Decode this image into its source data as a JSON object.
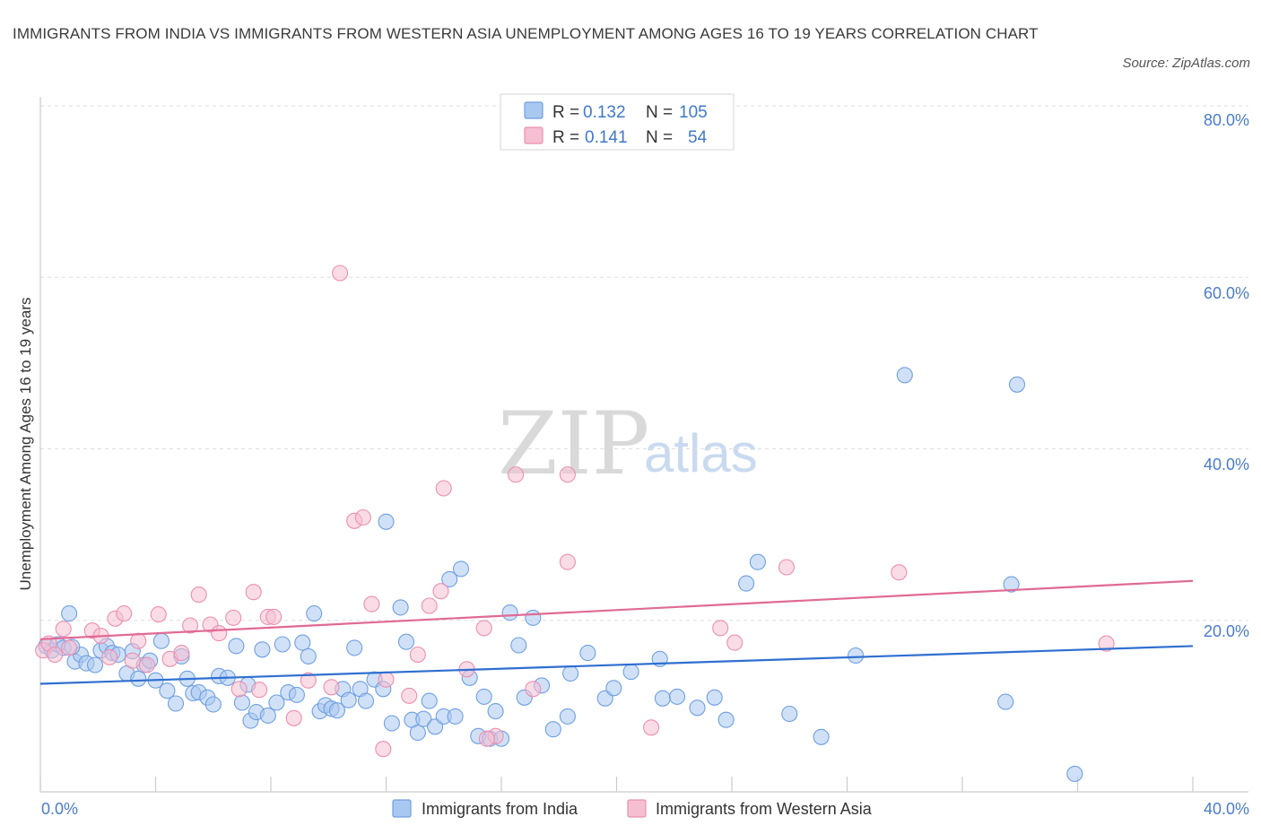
{
  "title": "IMMIGRANTS FROM INDIA VS IMMIGRANTS FROM WESTERN ASIA UNEMPLOYMENT AMONG AGES 16 TO 19 YEARS CORRELATION CHART",
  "source": "Source: ZipAtlas.com",
  "watermark": {
    "zip": "ZIP",
    "atlas": "atlas"
  },
  "colors": {
    "india_fill": "#a9c8f0",
    "india_stroke": "#6f9fe0",
    "india_line": "#2f6fd0",
    "wasia_fill": "#f6bfd1",
    "wasia_stroke": "#ea8fb0",
    "wasia_line": "#e06a94",
    "tick_text": "#4a7cc9",
    "grid": "#dddddd"
  },
  "legend": {
    "india": {
      "r_label": "R = ",
      "r_value": "0.132",
      "n_label": "N = ",
      "n_value": "105"
    },
    "wasia": {
      "r_label": "R = ",
      "r_value": "0.141",
      "n_label": "N = ",
      "n_value": "54"
    }
  },
  "chart_data": {
    "type": "scatter",
    "title": "IMMIGRANTS FROM INDIA VS IMMIGRANTS FROM WESTERN ASIA UNEMPLOYMENT AMONG AGES 16 TO 19 YEARS CORRELATION CHART",
    "xlabel": "",
    "ylabel": "Unemployment Among Ages 16 to 19 years",
    "xlim": [
      0,
      40
    ],
    "ylim": [
      0,
      80
    ],
    "x_tick_labels": [
      "0.0%",
      "40.0%"
    ],
    "y_tick_labels": [
      "20.0%",
      "40.0%",
      "60.0%",
      "80.0%"
    ],
    "legend_labels": [
      "Immigrants from India",
      "Immigrants from Western Asia"
    ],
    "series": [
      {
        "name": "Immigrants from India",
        "r": 0.132,
        "n": 105,
        "trend": {
          "x": [
            0,
            40
          ],
          "y": [
            12.6,
            17.0
          ]
        },
        "points": [
          [
            0.2,
            17.0
          ],
          [
            0.4,
            16.5
          ],
          [
            0.6,
            17.2
          ],
          [
            0.8,
            16.8
          ],
          [
            1.0,
            20.8
          ],
          [
            1.2,
            15.2
          ],
          [
            1.4,
            16.0
          ],
          [
            1.6,
            15.0
          ],
          [
            1.9,
            14.8
          ],
          [
            2.1,
            16.5
          ],
          [
            2.3,
            17.0
          ],
          [
            2.5,
            16.2
          ],
          [
            2.7,
            16.0
          ],
          [
            3.0,
            13.8
          ],
          [
            3.2,
            16.4
          ],
          [
            3.4,
            13.2
          ],
          [
            3.6,
            14.8
          ],
          [
            3.8,
            15.3
          ],
          [
            4.0,
            13.0
          ],
          [
            4.2,
            17.6
          ],
          [
            4.4,
            11.8
          ],
          [
            4.7,
            10.3
          ],
          [
            4.9,
            15.8
          ],
          [
            5.1,
            13.2
          ],
          [
            5.3,
            11.5
          ],
          [
            5.5,
            11.6
          ],
          [
            5.8,
            11.0
          ],
          [
            6.0,
            10.2
          ],
          [
            6.2,
            13.5
          ],
          [
            6.5,
            13.3
          ],
          [
            6.8,
            17.0
          ],
          [
            7.0,
            10.4
          ],
          [
            7.2,
            12.5
          ],
          [
            7.3,
            8.3
          ],
          [
            7.5,
            9.3
          ],
          [
            7.7,
            16.6
          ],
          [
            7.9,
            8.9
          ],
          [
            8.2,
            10.4
          ],
          [
            8.4,
            17.2
          ],
          [
            8.6,
            11.6
          ],
          [
            8.9,
            11.3
          ],
          [
            9.1,
            17.4
          ],
          [
            9.3,
            15.8
          ],
          [
            9.5,
            20.8
          ],
          [
            9.7,
            9.4
          ],
          [
            9.9,
            10.1
          ],
          [
            10.1,
            9.7
          ],
          [
            10.3,
            9.5
          ],
          [
            10.5,
            12.0
          ],
          [
            10.7,
            10.7
          ],
          [
            10.9,
            16.8
          ],
          [
            11.1,
            12.0
          ],
          [
            11.3,
            10.6
          ],
          [
            11.6,
            13.1
          ],
          [
            11.9,
            12.0
          ],
          [
            12.0,
            31.5
          ],
          [
            12.2,
            8.0
          ],
          [
            12.5,
            21.5
          ],
          [
            12.7,
            17.5
          ],
          [
            12.9,
            8.4
          ],
          [
            13.1,
            6.9
          ],
          [
            13.3,
            8.5
          ],
          [
            13.5,
            10.6
          ],
          [
            13.7,
            7.6
          ],
          [
            14.0,
            8.8
          ],
          [
            14.2,
            24.8
          ],
          [
            14.4,
            8.8
          ],
          [
            14.6,
            26.0
          ],
          [
            14.9,
            13.3
          ],
          [
            15.2,
            6.5
          ],
          [
            15.4,
            11.1
          ],
          [
            15.6,
            6.2
          ],
          [
            15.8,
            9.4
          ],
          [
            16.0,
            6.2
          ],
          [
            16.3,
            20.9
          ],
          [
            16.6,
            17.1
          ],
          [
            16.8,
            11.0
          ],
          [
            17.1,
            20.3
          ],
          [
            17.4,
            12.4
          ],
          [
            17.8,
            7.3
          ],
          [
            18.3,
            8.8
          ],
          [
            18.4,
            13.8
          ],
          [
            19.0,
            16.2
          ],
          [
            19.6,
            10.9
          ],
          [
            19.9,
            12.1
          ],
          [
            20.5,
            14.0
          ],
          [
            21.5,
            15.5
          ],
          [
            21.6,
            10.9
          ],
          [
            22.1,
            11.1
          ],
          [
            22.8,
            9.8
          ],
          [
            23.4,
            11.0
          ],
          [
            23.8,
            8.4
          ],
          [
            24.5,
            24.3
          ],
          [
            24.9,
            26.8
          ],
          [
            26.0,
            9.1
          ],
          [
            27.1,
            6.4
          ],
          [
            28.3,
            15.9
          ],
          [
            30.0,
            48.6
          ],
          [
            33.5,
            10.5
          ],
          [
            33.7,
            24.2
          ],
          [
            33.9,
            47.5
          ],
          [
            35.9,
            2.1
          ],
          [
            1.1,
            16.9
          ]
        ]
      },
      {
        "name": "Immigrants from Western Asia",
        "r": 0.141,
        "n": 54,
        "trend": {
          "x": [
            0,
            40
          ],
          "y": [
            17.8,
            24.6
          ]
        },
        "points": [
          [
            0.1,
            16.5
          ],
          [
            0.3,
            17.3
          ],
          [
            0.5,
            16.0
          ],
          [
            0.8,
            19.0
          ],
          [
            1.0,
            16.8
          ],
          [
            1.8,
            18.8
          ],
          [
            2.1,
            18.2
          ],
          [
            2.4,
            15.7
          ],
          [
            2.6,
            20.2
          ],
          [
            2.9,
            20.8
          ],
          [
            3.2,
            15.3
          ],
          [
            3.4,
            17.6
          ],
          [
            3.7,
            14.8
          ],
          [
            4.1,
            20.7
          ],
          [
            4.5,
            15.5
          ],
          [
            4.9,
            16.2
          ],
          [
            5.2,
            19.4
          ],
          [
            5.5,
            23.0
          ],
          [
            5.9,
            19.5
          ],
          [
            6.2,
            18.5
          ],
          [
            6.7,
            20.3
          ],
          [
            6.9,
            12.0
          ],
          [
            7.4,
            23.3
          ],
          [
            7.6,
            11.9
          ],
          [
            7.9,
            20.4
          ],
          [
            8.1,
            20.4
          ],
          [
            8.8,
            8.6
          ],
          [
            9.3,
            13.0
          ],
          [
            10.1,
            12.2
          ],
          [
            10.4,
            60.5
          ],
          [
            10.9,
            31.6
          ],
          [
            11.2,
            32.0
          ],
          [
            11.5,
            21.9
          ],
          [
            11.9,
            5.0
          ],
          [
            12.0,
            13.1
          ],
          [
            12.8,
            11.2
          ],
          [
            13.1,
            16.0
          ],
          [
            13.5,
            21.7
          ],
          [
            13.9,
            23.4
          ],
          [
            14.0,
            35.4
          ],
          [
            14.8,
            14.3
          ],
          [
            15.4,
            19.1
          ],
          [
            15.8,
            6.5
          ],
          [
            16.5,
            37.0
          ],
          [
            17.1,
            12.0
          ],
          [
            18.3,
            37.0
          ],
          [
            18.3,
            26.8
          ],
          [
            21.2,
            7.5
          ],
          [
            23.6,
            19.1
          ],
          [
            24.1,
            17.4
          ],
          [
            25.9,
            26.2
          ],
          [
            29.8,
            25.6
          ],
          [
            37.0,
            17.3
          ],
          [
            15.5,
            6.2
          ]
        ]
      }
    ]
  }
}
